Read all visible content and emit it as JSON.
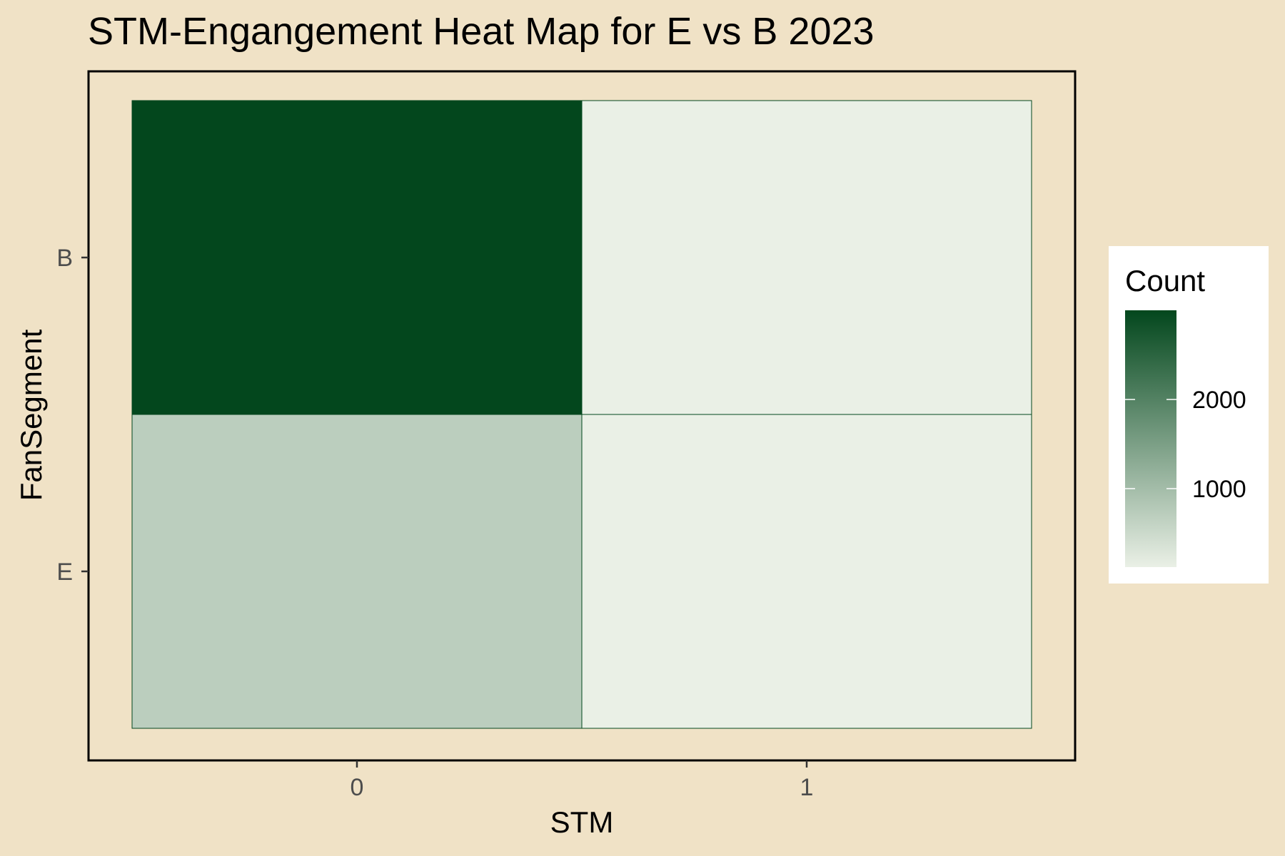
{
  "chart_data": {
    "type": "heatmap",
    "title": "STM-Engangement Heat Map for E vs B 2023",
    "xlabel": "STM",
    "ylabel": "FanSegment",
    "x_categories": [
      "0",
      "1"
    ],
    "y_categories": [
      "E",
      "B"
    ],
    "cells": [
      {
        "x": "0",
        "y": "B",
        "value": 3000
      },
      {
        "x": "1",
        "y": "B",
        "value": 120
      },
      {
        "x": "0",
        "y": "E",
        "value": 700
      },
      {
        "x": "1",
        "y": "E",
        "value": 120
      }
    ],
    "legend": {
      "title": "Count",
      "ticks": [
        1000,
        2000
      ],
      "range": [
        120,
        3000
      ],
      "low_color": "#EAF0E6",
      "high_color": "#03471D"
    },
    "grid": false,
    "legend_placement": "right"
  },
  "colors": {
    "background": "#F0E2C6",
    "panel_border": "#000000",
    "tile_border": "#03471D"
  }
}
